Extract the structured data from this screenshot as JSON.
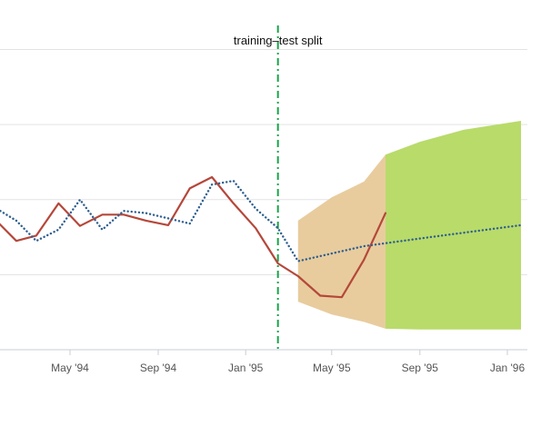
{
  "chart_data": {
    "type": "line",
    "x_axis": {
      "type": "date",
      "range": [
        "1994-01-15",
        "1996-01-20"
      ],
      "tick_labels": [
        {
          "date": "1994-05-01",
          "label": "May '94"
        },
        {
          "date": "1994-09-01",
          "label": "Sep '94"
        },
        {
          "date": "1995-01-01",
          "label": "Jan '95"
        },
        {
          "date": "1995-05-01",
          "label": "May '95"
        },
        {
          "date": "1995-09-01",
          "label": "Sep '95"
        },
        {
          "date": "1996-01-01",
          "label": "Jan '96"
        }
      ]
    },
    "y_axis": {
      "range": [
        0,
        4.2
      ],
      "gridlines": [
        0,
        1,
        2,
        3,
        4
      ],
      "tick_labels_visible": false
    },
    "grid": true,
    "legend": "none",
    "annotations": [
      {
        "type": "vertical-line",
        "date": "1995-02-15",
        "label": "training–test split",
        "color": "#1aa34a"
      }
    ],
    "series": [
      {
        "kind": "actual",
        "style": "solid",
        "color": "#b5473a",
        "points": [
          {
            "x": "1994-01-15",
            "y": 1.75
          },
          {
            "x": "1994-02-15",
            "y": 1.45
          },
          {
            "x": "1994-03-15",
            "y": 1.52
          },
          {
            "x": "1994-04-15",
            "y": 1.95
          },
          {
            "x": "1994-05-15",
            "y": 1.65
          },
          {
            "x": "1994-06-15",
            "y": 1.8
          },
          {
            "x": "1994-07-15",
            "y": 1.8
          },
          {
            "x": "1994-08-15",
            "y": 1.72
          },
          {
            "x": "1994-09-15",
            "y": 1.66
          },
          {
            "x": "1994-10-15",
            "y": 2.15
          },
          {
            "x": "1994-11-15",
            "y": 2.3
          },
          {
            "x": "1994-12-15",
            "y": 1.95
          },
          {
            "x": "1995-01-15",
            "y": 1.62
          },
          {
            "x": "1995-02-15",
            "y": 1.15
          },
          {
            "x": "1995-03-15",
            "y": 0.98
          },
          {
            "x": "1995-04-15",
            "y": 0.72
          },
          {
            "x": "1995-05-15",
            "y": 0.7
          },
          {
            "x": "1995-06-15",
            "y": 1.2
          },
          {
            "x": "1995-07-15",
            "y": 1.82
          }
        ]
      },
      {
        "kind": "fitted-forecast",
        "style": "dotted",
        "color": "#2f5f8f",
        "points": [
          {
            "x": "1994-01-15",
            "y": 1.9
          },
          {
            "x": "1994-02-15",
            "y": 1.72
          },
          {
            "x": "1994-03-15",
            "y": 1.45
          },
          {
            "x": "1994-04-15",
            "y": 1.6
          },
          {
            "x": "1994-05-15",
            "y": 2.0
          },
          {
            "x": "1994-06-15",
            "y": 1.6
          },
          {
            "x": "1994-07-15",
            "y": 1.85
          },
          {
            "x": "1994-08-15",
            "y": 1.82
          },
          {
            "x": "1994-09-15",
            "y": 1.75
          },
          {
            "x": "1994-10-15",
            "y": 1.68
          },
          {
            "x": "1994-11-15",
            "y": 2.2
          },
          {
            "x": "1994-12-15",
            "y": 2.25
          },
          {
            "x": "1995-01-15",
            "y": 1.88
          },
          {
            "x": "1995-02-15",
            "y": 1.62
          },
          {
            "x": "1995-03-15",
            "y": 1.18
          },
          {
            "x": "1995-06-15",
            "y": 1.38
          },
          {
            "x": "1995-09-15",
            "y": 1.5
          },
          {
            "x": "1996-01-20",
            "y": 1.66
          }
        ]
      }
    ],
    "bands": [
      {
        "color": "#e8cc9e",
        "points": [
          {
            "x": "1995-03-15",
            "upper": 1.72,
            "lower": 0.64
          },
          {
            "x": "1995-05-01",
            "upper": 2.03,
            "lower": 0.47
          },
          {
            "x": "1995-06-15",
            "upper": 2.24,
            "lower": 0.37
          },
          {
            "x": "1995-07-15",
            "upper": 2.6,
            "lower": 0.28
          }
        ]
      },
      {
        "color": "#b8db6a",
        "points": [
          {
            "x": "1995-07-15",
            "upper": 2.6,
            "lower": 0.28
          },
          {
            "x": "1995-09-01",
            "upper": 2.77,
            "lower": 0.27
          },
          {
            "x": "1995-11-01",
            "upper": 2.93,
            "lower": 0.27
          },
          {
            "x": "1996-01-20",
            "upper": 3.05,
            "lower": 0.27
          }
        ]
      }
    ]
  }
}
